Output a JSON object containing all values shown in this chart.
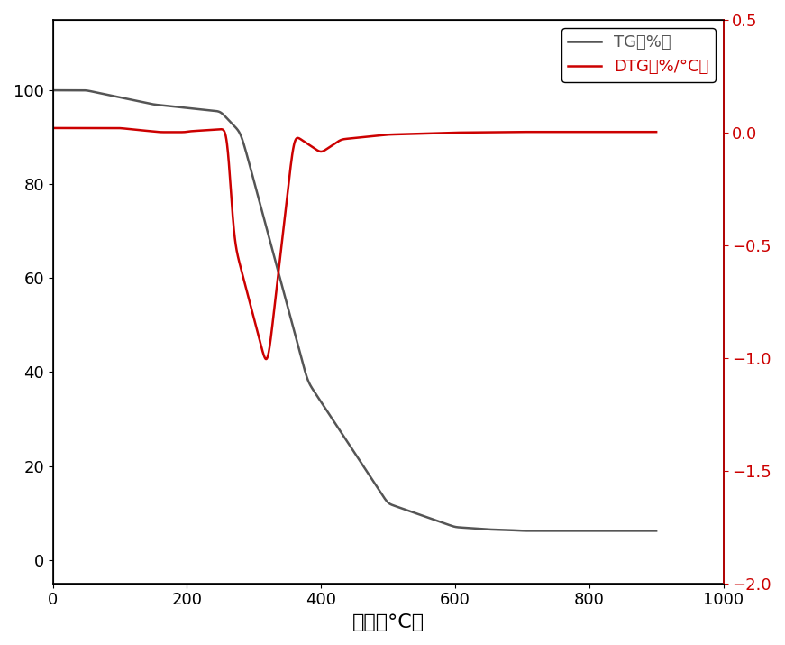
{
  "title": "",
  "xlabel": "温度（°C）",
  "ylabel_left": "TG（%）",
  "ylabel_right": "DTG（%/°C）",
  "xlim": [
    0,
    1000
  ],
  "ylim_left": [
    -5,
    115
  ],
  "ylim_right": [
    -2.0,
    0.5
  ],
  "yticks_left": [
    0,
    20,
    40,
    60,
    80,
    100
  ],
  "yticks_right": [
    -2.0,
    -1.5,
    -1.0,
    -0.5,
    0.0,
    0.5
  ],
  "xticks": [
    0,
    200,
    400,
    600,
    800,
    1000
  ],
  "tg_color": "#555555",
  "dtg_color": "#cc0000",
  "legend_labels": [
    "TG（%）",
    "DTG（%/°C）"
  ],
  "background_color": "#ffffff",
  "figsize": [
    8.71,
    7.15
  ],
  "dpi": 100
}
